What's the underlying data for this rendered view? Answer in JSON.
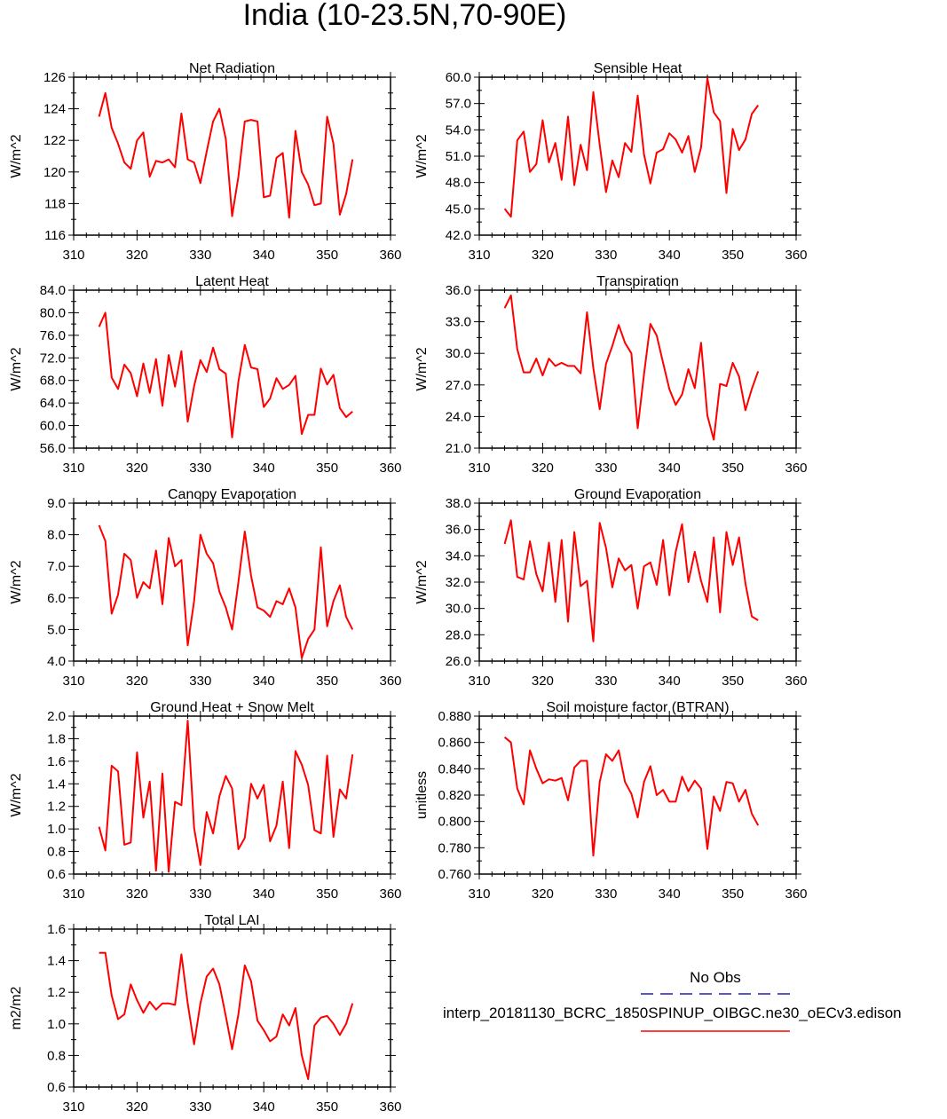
{
  "title": "India (10-23.5N,70-90E)",
  "legend": {
    "obs_label": "No Obs",
    "obs_color": "#1f1fb8",
    "model_label": "interp_20181130_BCRC_1850SPINUP_OIBGC.ne30_oECv3.edison",
    "model_color": "#ff0000"
  },
  "line_color": "#ff0000",
  "chart_data": [
    {
      "type": "line",
      "title": "Net Radiation",
      "ylabel": "W/m^2",
      "xlim": [
        310,
        360
      ],
      "xticks": [
        "310",
        "320",
        "330",
        "340",
        "350",
        "360"
      ],
      "ylim": [
        116,
        126
      ],
      "yticks": [
        "116",
        "118",
        "120",
        "122",
        "124",
        "126"
      ],
      "x": [
        314,
        315,
        316,
        317,
        318,
        319,
        320,
        321,
        322,
        323,
        324,
        325,
        326,
        327,
        328,
        329,
        330,
        331,
        332,
        333,
        334,
        335,
        336,
        337,
        338,
        339,
        340,
        341,
        342,
        343,
        344,
        345,
        346,
        347,
        348,
        349,
        350,
        351,
        352,
        353,
        354
      ],
      "values": [
        123.5,
        125.0,
        122.8,
        121.8,
        120.6,
        120.2,
        122.0,
        122.5,
        119.7,
        120.7,
        120.6,
        120.8,
        120.3,
        123.7,
        120.8,
        120.6,
        119.3,
        121.3,
        123.2,
        124.0,
        122.1,
        117.2,
        119.7,
        123.2,
        123.3,
        123.2,
        118.4,
        118.5,
        120.9,
        121.2,
        117.1,
        122.6,
        120.0,
        119.2,
        117.9,
        118.0,
        123.5,
        121.8,
        117.3,
        118.6,
        120.8
      ]
    },
    {
      "type": "line",
      "title": "Sensible Heat",
      "ylabel": "W/m^2",
      "xlim": [
        310,
        360
      ],
      "xticks": [
        "310",
        "320",
        "330",
        "340",
        "350",
        "360"
      ],
      "ylim": [
        42,
        60
      ],
      "yticks": [
        "42.0",
        "45.0",
        "48.0",
        "51.0",
        "54.0",
        "57.0",
        "60.0"
      ],
      "x": [
        314,
        315,
        316,
        317,
        318,
        319,
        320,
        321,
        322,
        323,
        324,
        325,
        326,
        327,
        328,
        329,
        330,
        331,
        332,
        333,
        334,
        335,
        336,
        337,
        338,
        339,
        340,
        341,
        342,
        343,
        344,
        345,
        346,
        347,
        348,
        349,
        350,
        351,
        352,
        353,
        354
      ],
      "values": [
        45.0,
        44.1,
        52.8,
        53.8,
        49.2,
        50.1,
        55.1,
        50.3,
        52.5,
        48.3,
        55.5,
        47.7,
        52.3,
        49.4,
        58.3,
        52.3,
        46.9,
        50.5,
        48.6,
        52.5,
        51.5,
        57.9,
        51.2,
        47.9,
        51.4,
        51.8,
        53.6,
        52.9,
        51.4,
        53.3,
        49.2,
        52.0,
        59.9,
        56.0,
        55.0,
        46.8,
        54.1,
        51.7,
        52.9,
        55.8,
        56.8
      ]
    },
    {
      "type": "line",
      "title": "Latent Heat",
      "ylabel": "W/m^2",
      "xlim": [
        310,
        360
      ],
      "xticks": [
        "310",
        "320",
        "330",
        "340",
        "350",
        "360"
      ],
      "ylim": [
        56,
        84
      ],
      "yticks": [
        "56.0",
        "60.0",
        "64.0",
        "68.0",
        "72.0",
        "76.0",
        "80.0",
        "84.0"
      ],
      "x": [
        314,
        315,
        316,
        317,
        318,
        319,
        320,
        321,
        322,
        323,
        324,
        325,
        326,
        327,
        328,
        329,
        330,
        331,
        332,
        333,
        334,
        335,
        336,
        337,
        338,
        339,
        340,
        341,
        342,
        343,
        344,
        345,
        346,
        347,
        348,
        349,
        350,
        351,
        352,
        353,
        354
      ],
      "values": [
        77.5,
        80.0,
        68.5,
        66.5,
        70.8,
        69.3,
        65.2,
        71.0,
        65.8,
        71.8,
        63.5,
        72.5,
        66.9,
        73.2,
        60.7,
        67.0,
        71.6,
        69.5,
        73.8,
        70.0,
        69.2,
        57.9,
        67.8,
        74.3,
        70.3,
        70.0,
        63.3,
        64.8,
        68.4,
        66.5,
        67.2,
        68.8,
        58.5,
        61.9,
        61.9,
        70.1,
        67.3,
        69.0,
        63.1,
        61.5,
        62.5
      ]
    },
    {
      "type": "line",
      "title": "Transpiration",
      "ylabel": "W/m^2",
      "xlim": [
        310,
        360
      ],
      "xticks": [
        "310",
        "320",
        "330",
        "340",
        "350",
        "360"
      ],
      "ylim": [
        21,
        36
      ],
      "yticks": [
        "21.0",
        "24.0",
        "27.0",
        "30.0",
        "33.0",
        "36.0"
      ],
      "x": [
        314,
        315,
        316,
        317,
        318,
        319,
        320,
        321,
        322,
        323,
        324,
        325,
        326,
        327,
        328,
        329,
        330,
        331,
        332,
        333,
        334,
        335,
        336,
        337,
        338,
        339,
        340,
        341,
        342,
        343,
        344,
        345,
        346,
        347,
        348,
        349,
        350,
        351,
        352,
        353,
        354
      ],
      "values": [
        34.3,
        35.5,
        30.4,
        28.2,
        28.2,
        29.5,
        27.9,
        29.5,
        28.8,
        29.1,
        28.8,
        28.8,
        28.1,
        33.9,
        28.6,
        24.7,
        29.0,
        30.7,
        32.7,
        31.0,
        30.0,
        22.9,
        28.0,
        32.8,
        31.7,
        29.1,
        26.6,
        25.1,
        26.1,
        28.5,
        26.7,
        31.0,
        24.1,
        21.8,
        27.1,
        26.9,
        29.1,
        27.8,
        24.6,
        26.6,
        28.3
      ]
    },
    {
      "type": "line",
      "title": "Canopy Evaporation",
      "ylabel": "W/m^2",
      "xlim": [
        310,
        360
      ],
      "xticks": [
        "310",
        "320",
        "330",
        "340",
        "350",
        "360"
      ],
      "ylim": [
        4,
        9
      ],
      "yticks": [
        "4.0",
        "5.0",
        "6.0",
        "7.0",
        "8.0",
        "9.0"
      ],
      "x": [
        314,
        315,
        316,
        317,
        318,
        319,
        320,
        321,
        322,
        323,
        324,
        325,
        326,
        327,
        328,
        329,
        330,
        331,
        332,
        333,
        334,
        335,
        336,
        337,
        338,
        339,
        340,
        341,
        342,
        343,
        344,
        345,
        346,
        347,
        348,
        349,
        350,
        351,
        352,
        353,
        354
      ],
      "values": [
        8.3,
        7.8,
        5.5,
        6.1,
        7.4,
        7.2,
        6.0,
        6.5,
        6.3,
        7.5,
        5.8,
        7.9,
        7.0,
        7.2,
        4.5,
        5.9,
        8.0,
        7.4,
        7.1,
        6.2,
        5.7,
        5.0,
        6.5,
        8.1,
        6.7,
        5.7,
        5.6,
        5.4,
        5.9,
        5.8,
        6.3,
        5.7,
        4.1,
        4.7,
        5.0,
        7.6,
        5.1,
        5.9,
        6.4,
        5.4,
        5.0
      ]
    },
    {
      "type": "line",
      "title": "Ground Evaporation",
      "ylabel": "W/m^2",
      "xlim": [
        310,
        360
      ],
      "xticks": [
        "310",
        "320",
        "330",
        "340",
        "350",
        "360"
      ],
      "ylim": [
        26,
        38
      ],
      "yticks": [
        "26.0",
        "28.0",
        "30.0",
        "32.0",
        "34.0",
        "36.0",
        "38.0"
      ],
      "x": [
        314,
        315,
        316,
        317,
        318,
        319,
        320,
        321,
        322,
        323,
        324,
        325,
        326,
        327,
        328,
        329,
        330,
        331,
        332,
        333,
        334,
        335,
        336,
        337,
        338,
        339,
        340,
        341,
        342,
        343,
        344,
        345,
        346,
        347,
        348,
        349,
        350,
        351,
        352,
        353,
        354
      ],
      "values": [
        34.9,
        36.7,
        32.4,
        32.2,
        35.1,
        32.6,
        31.3,
        35.0,
        30.5,
        35.2,
        29.0,
        35.8,
        31.7,
        32.1,
        27.5,
        36.5,
        34.6,
        31.6,
        33.8,
        32.9,
        33.3,
        30.0,
        33.2,
        33.5,
        31.8,
        35.2,
        31.0,
        34.3,
        36.4,
        32.0,
        34.3,
        32.1,
        30.5,
        35.4,
        29.7,
        35.8,
        33.3,
        35.4,
        31.9,
        29.4,
        29.1
      ]
    },
    {
      "type": "line",
      "title": "Ground Heat + Snow Melt",
      "ylabel": "W/m^2",
      "xlim": [
        310,
        360
      ],
      "xticks": [
        "310",
        "320",
        "330",
        "340",
        "350",
        "360"
      ],
      "ylim": [
        0.6,
        2.0
      ],
      "yticks": [
        "0.6",
        "0.8",
        "1.0",
        "1.2",
        "1.4",
        "1.6",
        "1.8",
        "2.0"
      ],
      "x": [
        314,
        315,
        316,
        317,
        318,
        319,
        320,
        321,
        322,
        323,
        324,
        325,
        326,
        327,
        328,
        329,
        330,
        331,
        332,
        333,
        334,
        335,
        336,
        337,
        338,
        339,
        340,
        341,
        342,
        343,
        344,
        345,
        346,
        347,
        348,
        349,
        350,
        351,
        352,
        353,
        354
      ],
      "values": [
        1.02,
        0.81,
        1.56,
        1.51,
        0.86,
        0.88,
        1.68,
        1.1,
        1.42,
        0.63,
        1.49,
        0.62,
        1.24,
        1.21,
        1.96,
        1.01,
        0.68,
        1.15,
        0.96,
        1.29,
        1.47,
        1.36,
        0.82,
        0.92,
        1.4,
        1.27,
        1.39,
        0.89,
        1.03,
        1.42,
        0.83,
        1.69,
        1.57,
        1.39,
        0.99,
        0.96,
        1.65,
        0.93,
        1.35,
        1.27,
        1.66
      ]
    },
    {
      "type": "line",
      "title": "Soil moisture factor (BTRAN)",
      "ylabel": "unitless",
      "xlim": [
        310,
        360
      ],
      "xticks": [
        "310",
        "320",
        "330",
        "340",
        "350",
        "360"
      ],
      "ylim": [
        0.76,
        0.88
      ],
      "yticks": [
        "0.760",
        "0.780",
        "0.800",
        "0.820",
        "0.840",
        "0.860",
        "0.880"
      ],
      "x": [
        314,
        315,
        316,
        317,
        318,
        319,
        320,
        321,
        322,
        323,
        324,
        325,
        326,
        327,
        328,
        329,
        330,
        331,
        332,
        333,
        334,
        335,
        336,
        337,
        338,
        339,
        340,
        341,
        342,
        343,
        344,
        345,
        346,
        347,
        348,
        349,
        350,
        351,
        352,
        353,
        354
      ],
      "values": [
        0.864,
        0.86,
        0.825,
        0.813,
        0.854,
        0.84,
        0.829,
        0.832,
        0.831,
        0.833,
        0.816,
        0.841,
        0.846,
        0.846,
        0.774,
        0.83,
        0.851,
        0.846,
        0.854,
        0.83,
        0.821,
        0.803,
        0.83,
        0.842,
        0.82,
        0.824,
        0.815,
        0.815,
        0.834,
        0.823,
        0.831,
        0.825,
        0.779,
        0.819,
        0.808,
        0.83,
        0.829,
        0.815,
        0.824,
        0.806,
        0.797
      ]
    },
    {
      "type": "line",
      "title": "Total LAI",
      "ylabel": "m2/m2",
      "xlim": [
        310,
        360
      ],
      "xticks": [
        "310",
        "320",
        "330",
        "340",
        "350",
        "360"
      ],
      "ylim": [
        0.6,
        1.6
      ],
      "yticks": [
        "0.6",
        "0.8",
        "1.0",
        "1.2",
        "1.4",
        "1.6"
      ],
      "x": [
        314,
        315,
        316,
        317,
        318,
        319,
        320,
        321,
        322,
        323,
        324,
        325,
        326,
        327,
        328,
        329,
        330,
        331,
        332,
        333,
        334,
        335,
        336,
        337,
        338,
        339,
        340,
        341,
        342,
        343,
        344,
        345,
        346,
        347,
        348,
        349,
        350,
        351,
        352,
        353,
        354
      ],
      "values": [
        1.45,
        1.45,
        1.18,
        1.03,
        1.06,
        1.25,
        1.15,
        1.07,
        1.14,
        1.09,
        1.13,
        1.13,
        1.12,
        1.44,
        1.13,
        0.87,
        1.13,
        1.3,
        1.35,
        1.25,
        1.05,
        0.84,
        1.06,
        1.37,
        1.27,
        1.02,
        0.96,
        0.89,
        0.92,
        1.06,
        0.99,
        1.1,
        0.8,
        0.65,
        0.99,
        1.04,
        1.05,
        1.0,
        0.93,
        1.0,
        1.13
      ]
    }
  ]
}
